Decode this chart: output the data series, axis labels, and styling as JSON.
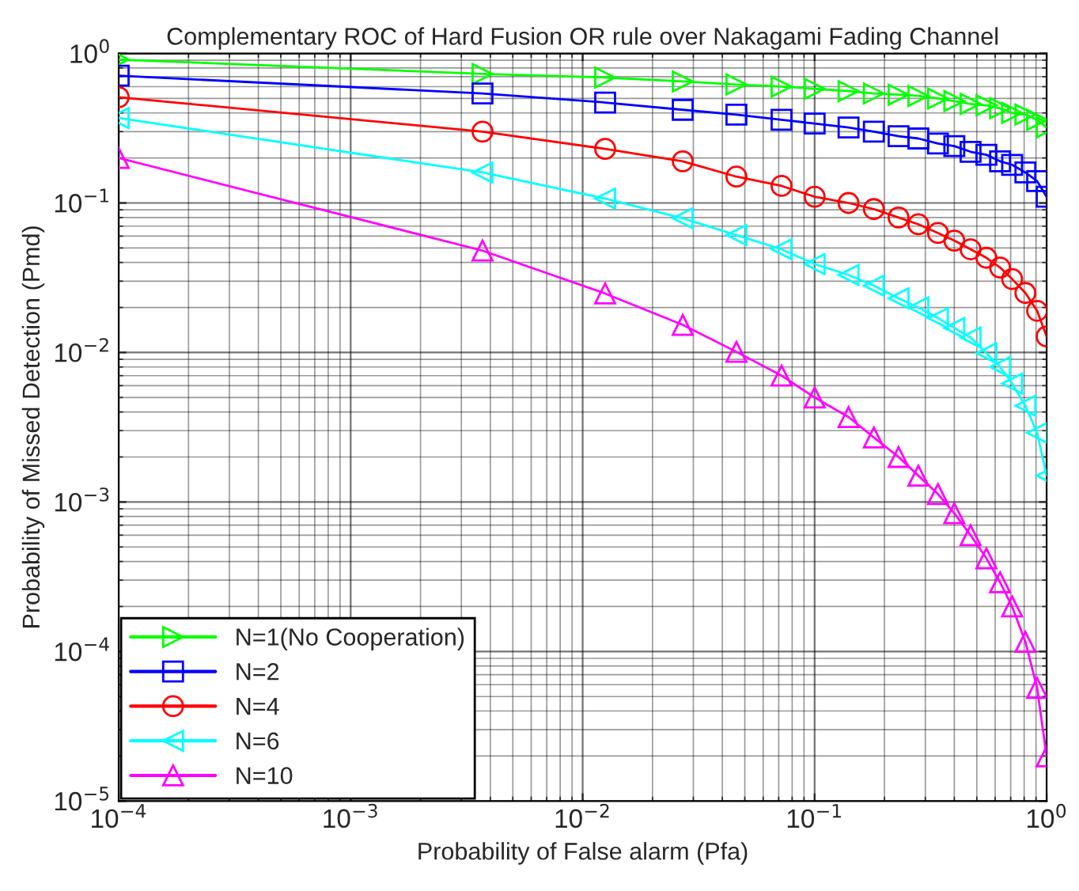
{
  "chart_data": {
    "type": "line",
    "title": "Complementary ROC of Hard Fusion OR rule over Nakagami Fading Channel",
    "xlabel": "Probability of False alarm (Pfa)",
    "ylabel": "Probability of Missed Detection (Pmd)",
    "x": [
      0.0001,
      0.0037,
      0.0125,
      0.027,
      0.046,
      0.072,
      0.1,
      0.14,
      0.18,
      0.23,
      0.28,
      0.34,
      0.4,
      0.47,
      0.55,
      0.63,
      0.71,
      0.81,
      0.91,
      1.0
    ],
    "series": [
      {
        "name": "N=1(No Cooperation)",
        "color": "#00ff00",
        "marker": "triangle-right",
        "values": [
          0.91,
          0.73,
          0.69,
          0.65,
          0.62,
          0.6,
          0.58,
          0.56,
          0.54,
          0.53,
          0.52,
          0.5,
          0.48,
          0.46,
          0.45,
          0.43,
          0.4,
          0.39,
          0.36,
          0.32
        ]
      },
      {
        "name": "N=2",
        "color": "#0000ff",
        "marker": "square",
        "values": [
          0.71,
          0.54,
          0.47,
          0.42,
          0.39,
          0.36,
          0.34,
          0.32,
          0.3,
          0.28,
          0.27,
          0.25,
          0.24,
          0.22,
          0.21,
          0.19,
          0.18,
          0.16,
          0.14,
          0.11
        ]
      },
      {
        "name": "N=4",
        "color": "#ff0000",
        "marker": "circle",
        "values": [
          0.51,
          0.3,
          0.23,
          0.19,
          0.15,
          0.13,
          0.11,
          0.1,
          0.091,
          0.08,
          0.072,
          0.063,
          0.056,
          0.049,
          0.043,
          0.037,
          0.031,
          0.025,
          0.019,
          0.0128
        ]
      },
      {
        "name": "N=6",
        "color": "#00ffff",
        "marker": "triangle-left",
        "values": [
          0.37,
          0.16,
          0.107,
          0.079,
          0.061,
          0.049,
          0.039,
          0.033,
          0.028,
          0.023,
          0.02,
          0.017,
          0.0146,
          0.0126,
          0.0099,
          0.008,
          0.0062,
          0.0044,
          0.0029,
          0.0015
        ]
      },
      {
        "name": "N=10",
        "color": "#ff00ff",
        "marker": "triangle",
        "values": [
          0.2,
          0.048,
          0.0248,
          0.0153,
          0.0101,
          0.007,
          0.005,
          0.0037,
          0.0027,
          0.002,
          0.0015,
          0.00113,
          0.00084,
          0.0006,
          0.00042,
          0.00029,
          0.0002,
          0.000116,
          5.7e-05,
          1.99e-05
        ]
      }
    ],
    "log": "xy",
    "xlim": [
      0.0001,
      1
    ],
    "ylim": [
      1e-05,
      1
    ],
    "xticks": [
      {
        "value": 0.0001,
        "label": "10$^{−4}$"
      },
      {
        "value": 0.001,
        "label": "10$^{−3}$"
      },
      {
        "value": 0.01,
        "label": "10$^{−2}$"
      },
      {
        "value": 0.1,
        "label": "10$^{−1}$"
      },
      {
        "value": 1,
        "label": "10$^{0}$"
      }
    ],
    "yticks": [
      {
        "value": 1e-05,
        "label": "10$^{−5}$"
      },
      {
        "value": 0.0001,
        "label": "10$^{−4}$"
      },
      {
        "value": 0.001,
        "label": "10$^{−3}$"
      },
      {
        "value": 0.01,
        "label": "10$^{−2}$"
      },
      {
        "value": 0.1,
        "label": "10$^{−1}$"
      },
      {
        "value": 1,
        "label": "10$^{0}$"
      }
    ],
    "grid": true,
    "legend": "bottom left",
    "line_style": "solid"
  }
}
